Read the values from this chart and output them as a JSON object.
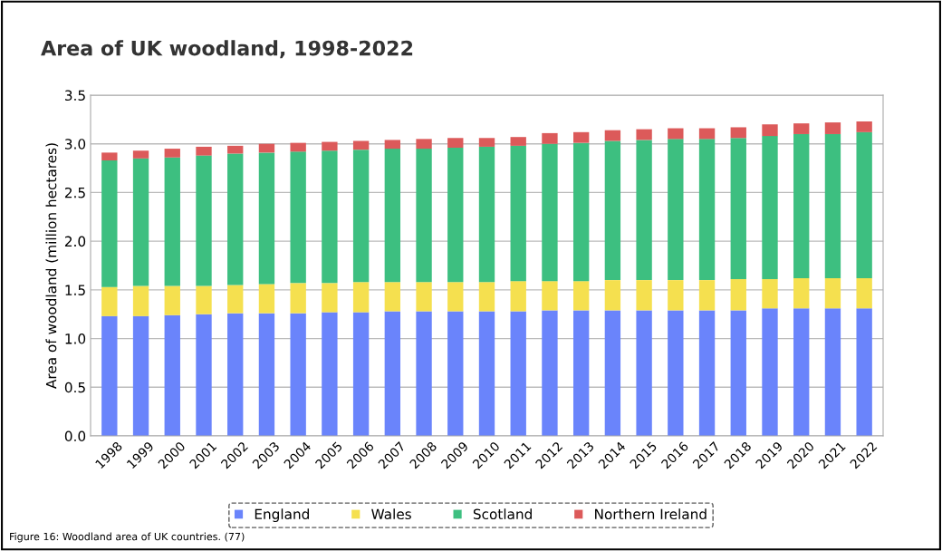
{
  "chart_data": {
    "type": "bar",
    "title": "Area of UK woodland, 1998-2022",
    "ylabel": "Area of woodland (million hectares)",
    "categories": [
      "1998",
      "1999",
      "2000",
      "2001",
      "2002",
      "2003",
      "2004",
      "2005",
      "2006",
      "2007",
      "2008",
      "2009",
      "2010",
      "2011",
      "2012",
      "2013",
      "2014",
      "2015",
      "2016",
      "2017",
      "2018",
      "2019",
      "2020",
      "2021",
      "2022"
    ],
    "stacked": true,
    "series": [
      {
        "name": "England",
        "color": "#6a84fb",
        "values": [
          1.23,
          1.23,
          1.24,
          1.25,
          1.26,
          1.26,
          1.26,
          1.27,
          1.27,
          1.28,
          1.28,
          1.28,
          1.28,
          1.28,
          1.29,
          1.29,
          1.29,
          1.29,
          1.29,
          1.29,
          1.29,
          1.31,
          1.31,
          1.31,
          1.31
        ]
      },
      {
        "name": "Wales",
        "color": "#f5e04f",
        "values": [
          0.3,
          0.31,
          0.3,
          0.29,
          0.29,
          0.3,
          0.31,
          0.3,
          0.31,
          0.3,
          0.3,
          0.3,
          0.3,
          0.31,
          0.3,
          0.3,
          0.31,
          0.31,
          0.31,
          0.31,
          0.32,
          0.3,
          0.31,
          0.31,
          0.31
        ]
      },
      {
        "name": "Scotland",
        "color": "#3dbf80",
        "values": [
          1.3,
          1.31,
          1.32,
          1.34,
          1.35,
          1.35,
          1.35,
          1.36,
          1.36,
          1.37,
          1.37,
          1.38,
          1.39,
          1.39,
          1.41,
          1.42,
          1.43,
          1.44,
          1.45,
          1.45,
          1.45,
          1.47,
          1.48,
          1.48,
          1.5
        ]
      },
      {
        "name": "Northern Ireland",
        "color": "#dc5a5a",
        "values": [
          0.08,
          0.08,
          0.09,
          0.09,
          0.08,
          0.09,
          0.09,
          0.09,
          0.09,
          0.09,
          0.1,
          0.1,
          0.09,
          0.09,
          0.11,
          0.11,
          0.11,
          0.11,
          0.11,
          0.11,
          0.11,
          0.12,
          0.11,
          0.12,
          0.11
        ]
      }
    ],
    "ylim": [
      0,
      3.5
    ],
    "yticks": [
      {
        "value": 0,
        "label": "0.0"
      },
      {
        "value": 0.5,
        "label": "0.5"
      },
      {
        "value": 1,
        "label": "1.0"
      },
      {
        "value": 1.5,
        "label": "1.5"
      },
      {
        "value": 2,
        "label": "2.0"
      },
      {
        "value": 2.5,
        "label": "2.5"
      },
      {
        "value": 3,
        "label": "3.0"
      },
      {
        "value": 3.5,
        "label": "3.5"
      }
    ],
    "grid": "y",
    "legend": "bottom",
    "annotations": [
      "Figure 16: Woodland area of UK countries. (77)"
    ]
  }
}
